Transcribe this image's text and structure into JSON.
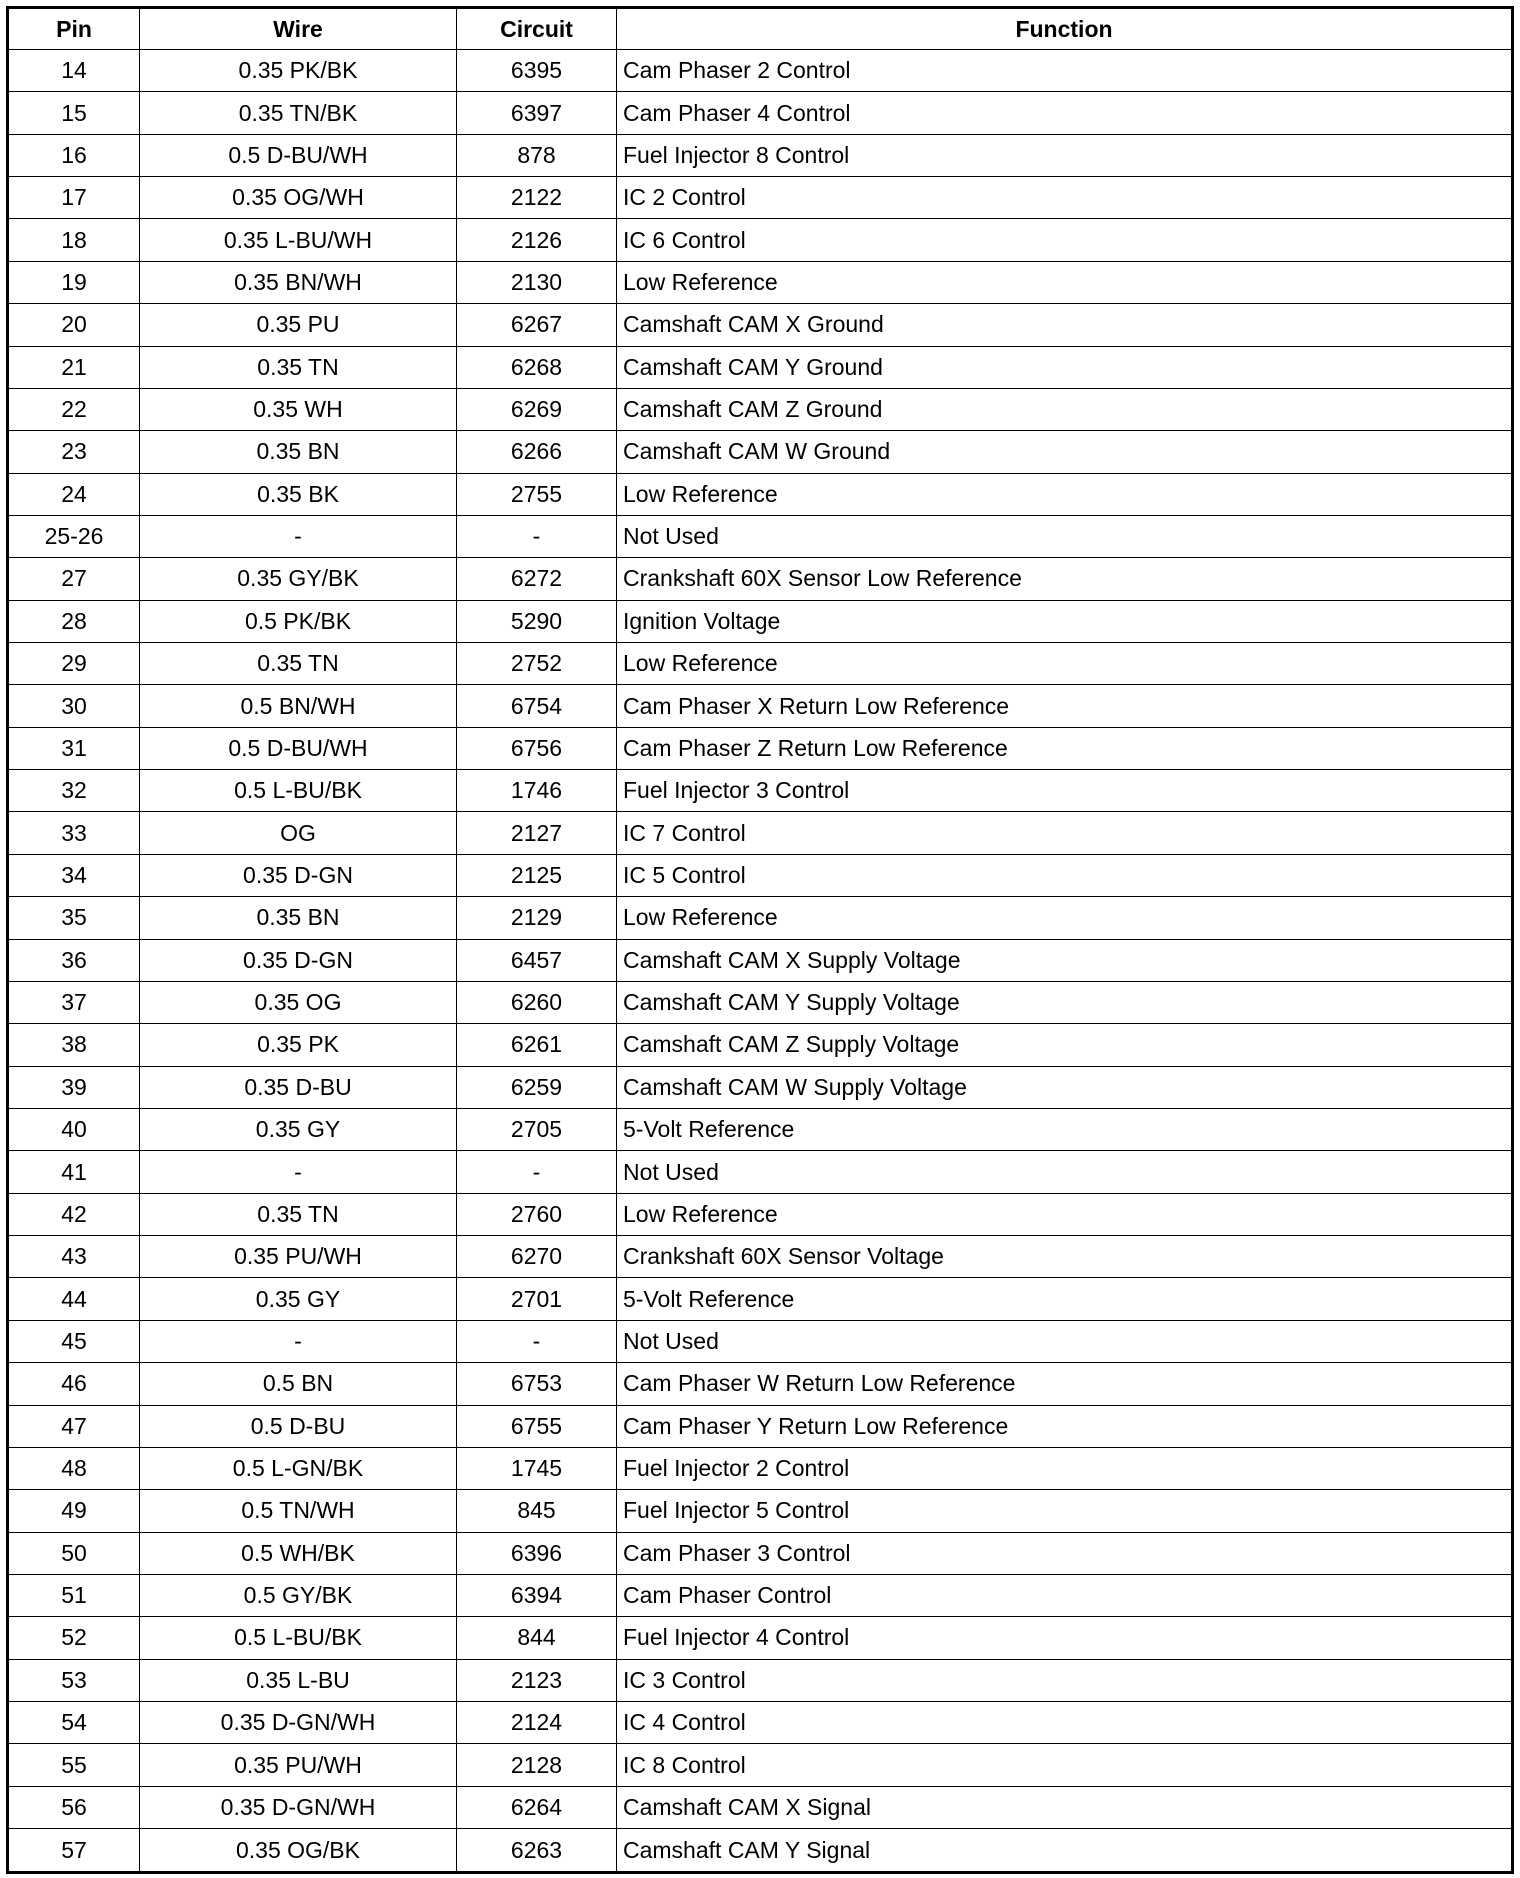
{
  "headers": [
    "Pin",
    "Wire",
    "Circuit",
    "Function"
  ],
  "rows": [
    [
      "14",
      "0.35 PK/BK",
      "6395",
      "Cam Phaser 2 Control"
    ],
    [
      "15",
      "0.35 TN/BK",
      "6397",
      "Cam Phaser 4 Control"
    ],
    [
      "16",
      "0.5 D-BU/WH",
      "878",
      "Fuel Injector 8 Control"
    ],
    [
      "17",
      "0.35 OG/WH",
      "2122",
      "IC 2 Control"
    ],
    [
      "18",
      "0.35 L-BU/WH",
      "2126",
      "IC 6 Control"
    ],
    [
      "19",
      "0.35 BN/WH",
      "2130",
      "Low Reference"
    ],
    [
      "20",
      "0.35 PU",
      "6267",
      "Camshaft CAM X Ground"
    ],
    [
      "21",
      "0.35 TN",
      "6268",
      "Camshaft CAM Y Ground"
    ],
    [
      "22",
      "0.35 WH",
      "6269",
      "Camshaft CAM Z Ground"
    ],
    [
      "23",
      "0.35 BN",
      "6266",
      "Camshaft CAM W Ground"
    ],
    [
      "24",
      "0.35 BK",
      "2755",
      "Low Reference"
    ],
    [
      "25-26",
      "-",
      "-",
      "Not Used"
    ],
    [
      "27",
      "0.35 GY/BK",
      "6272",
      "Crankshaft 60X Sensor Low Reference"
    ],
    [
      "28",
      "0.5 PK/BK",
      "5290",
      "Ignition Voltage"
    ],
    [
      "29",
      "0.35 TN",
      "2752",
      "Low Reference"
    ],
    [
      "30",
      "0.5 BN/WH",
      "6754",
      "Cam Phaser X Return Low Reference"
    ],
    [
      "31",
      "0.5 D-BU/WH",
      "6756",
      "Cam Phaser Z Return Low Reference"
    ],
    [
      "32",
      "0.5 L-BU/BK",
      "1746",
      "Fuel Injector 3 Control"
    ],
    [
      "33",
      "OG",
      "2127",
      "IC 7 Control"
    ],
    [
      "34",
      "0.35 D-GN",
      "2125",
      "IC 5 Control"
    ],
    [
      "35",
      "0.35 BN",
      "2129",
      "Low Reference"
    ],
    [
      "36",
      "0.35 D-GN",
      "6457",
      "Camshaft CAM X Supply Voltage"
    ],
    [
      "37",
      "0.35 OG",
      "6260",
      "Camshaft CAM Y Supply Voltage"
    ],
    [
      "38",
      "0.35 PK",
      "6261",
      "Camshaft CAM Z Supply Voltage"
    ],
    [
      "39",
      "0.35 D-BU",
      "6259",
      "Camshaft CAM W Supply Voltage"
    ],
    [
      "40",
      "0.35 GY",
      "2705",
      "5-Volt Reference"
    ],
    [
      "41",
      "-",
      "-",
      "Not Used"
    ],
    [
      "42",
      "0.35 TN",
      "2760",
      "Low Reference"
    ],
    [
      "43",
      "0.35 PU/WH",
      "6270",
      "Crankshaft 60X Sensor Voltage"
    ],
    [
      "44",
      "0.35 GY",
      "2701",
      "5-Volt Reference"
    ],
    [
      "45",
      "-",
      "-",
      "Not Used"
    ],
    [
      "46",
      "0.5 BN",
      "6753",
      "Cam Phaser W Return Low Reference"
    ],
    [
      "47",
      "0.5 D-BU",
      "6755",
      "Cam Phaser Y Return Low Reference"
    ],
    [
      "48",
      "0.5 L-GN/BK",
      "1745",
      "Fuel Injector 2 Control"
    ],
    [
      "49",
      "0.5 TN/WH",
      "845",
      "Fuel Injector 5 Control"
    ],
    [
      "50",
      "0.5 WH/BK",
      "6396",
      "Cam Phaser 3 Control"
    ],
    [
      "51",
      "0.5 GY/BK",
      "6394",
      "Cam Phaser Control"
    ],
    [
      "52",
      "0.5 L-BU/BK",
      "844",
      "Fuel Injector 4 Control"
    ],
    [
      "53",
      "0.35 L-BU",
      "2123",
      "IC 3 Control"
    ],
    [
      "54",
      "0.35 D-GN/WH",
      "2124",
      "IC 4 Control"
    ],
    [
      "55",
      "0.35 PU/WH",
      "2128",
      "IC 8 Control"
    ],
    [
      "56",
      "0.35 D-GN/WH",
      "6264",
      "Camshaft CAM X Signal"
    ],
    [
      "57",
      "0.35 OG/BK",
      "6263",
      "Camshaft CAM Y Signal"
    ]
  ]
}
